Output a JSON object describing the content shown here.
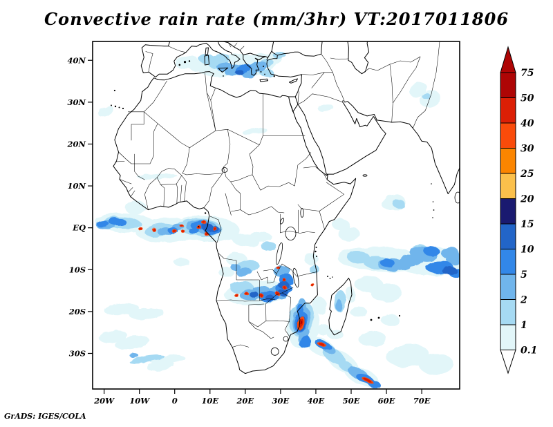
{
  "title": "Convective rain rate (mm/3hr) VT:2017011806",
  "attribution": "GrADS: IGES/COLA",
  "axes": {
    "lon_min": -23.25,
    "lon_max": 80.75,
    "lat_min": -38.5,
    "lat_max": 44.5,
    "lon_ticks": [
      {
        "value": -20,
        "label": "20W"
      },
      {
        "value": -10,
        "label": "10W"
      },
      {
        "value": 0,
        "label": "0"
      },
      {
        "value": 10,
        "label": "10E"
      },
      {
        "value": 20,
        "label": "20E"
      },
      {
        "value": 30,
        "label": "30E"
      },
      {
        "value": 40,
        "label": "40E"
      },
      {
        "value": 50,
        "label": "50E"
      },
      {
        "value": 60,
        "label": "60E"
      },
      {
        "value": 70,
        "label": "70E"
      }
    ],
    "lat_ticks": [
      {
        "value": 40,
        "label": "40N"
      },
      {
        "value": 30,
        "label": "30N"
      },
      {
        "value": 20,
        "label": "20N"
      },
      {
        "value": 10,
        "label": "10N"
      },
      {
        "value": 0,
        "label": "EQ"
      },
      {
        "value": -10,
        "label": "10S"
      },
      {
        "value": -20,
        "label": "20S"
      },
      {
        "value": -30,
        "label": "30S"
      }
    ]
  },
  "colorbar": {
    "labels": [
      "75",
      "50",
      "40",
      "30",
      "25",
      "20",
      "15",
      "10",
      "5",
      "2",
      "1",
      "0.1"
    ],
    "segment_colors": [
      "#AE0505",
      "#DC1F05",
      "#FA4B0A",
      "#FB8500",
      "#FBC04B",
      "#1A1A70",
      "#2265C8",
      "#3287E8",
      "#70B5EC",
      "#A6DAF3",
      "#E2F6F9"
    ],
    "over_arrow_color": "#AE0505",
    "under_arrow_color": "#FFFFFF"
  },
  "chart_data": {
    "type": "filled-contour-map",
    "title": "Convective rain rate (mm/3hr) VT:2017011806",
    "variable": "Convective rain rate",
    "units": "mm/3hr",
    "valid_time": "2017011806",
    "region": {
      "lon_min": -23.25,
      "lon_max": 80.75,
      "lat_min": -38.5,
      "lat_max": 44.5
    },
    "levels": [
      0.1,
      1,
      2,
      5,
      10,
      15,
      20,
      25,
      30,
      40,
      50,
      75
    ],
    "palette": {
      "0.1": "#E2F6F9",
      "1": "#A6DAF3",
      "2": "#70B5EC",
      "5": "#3287E8",
      "10": "#2265C8",
      "15": "#1A1A70",
      "O": "#FA4B0A",
      "R": "#DC1F05",
      "DR": "#AE0505"
    },
    "feature_format": [
      "lon",
      "lat",
      "rx_deg",
      "ry_deg",
      "rotation_deg",
      "level"
    ],
    "features": [
      [
        3.5,
        39.5,
        3.3,
        1.5,
        -10,
        "0.1"
      ],
      [
        7,
        38.6,
        3,
        1.3,
        0,
        "0.1"
      ],
      [
        15,
        38.8,
        8.5,
        2.6,
        -8,
        "0.1"
      ],
      [
        23,
        38.8,
        6,
        2.6,
        -12,
        "0.1"
      ],
      [
        27.8,
        40.3,
        3,
        1.4,
        -15,
        "0.1"
      ],
      [
        -19.5,
        27.8,
        2.4,
        1.1,
        -20,
        "0.1"
      ],
      [
        22.6,
        23.1,
        3.5,
        0.8,
        -8,
        "0.1"
      ],
      [
        -5,
        12.3,
        5.5,
        0.7,
        -4,
        "0.1"
      ],
      [
        42.8,
        28.6,
        2.2,
        0.8,
        -10,
        "0.1"
      ],
      [
        69,
        33,
        2.6,
        1.6,
        -30,
        "0.1"
      ],
      [
        72.3,
        30.8,
        3,
        2,
        -20,
        "0.1"
      ],
      [
        -14,
        1.2,
        8.5,
        2.3,
        3,
        "0.1"
      ],
      [
        -2,
        -0.6,
        9,
        2.9,
        -4,
        "0.1"
      ],
      [
        9,
        -0.2,
        9.5,
        3.1,
        4,
        "0.1"
      ],
      [
        -11,
        4.8,
        3,
        1.7,
        0,
        "0.1"
      ],
      [
        2,
        -8.2,
        2.2,
        1,
        0,
        "0.1"
      ],
      [
        20,
        -3,
        4,
        1.5,
        10,
        "0.1"
      ],
      [
        24.5,
        -2.2,
        3,
        1.2,
        0,
        "0.1"
      ],
      [
        17.5,
        -7.5,
        3,
        1.6,
        0,
        "0.1"
      ],
      [
        14.5,
        -10.5,
        2.2,
        1.2,
        0,
        "0.1"
      ],
      [
        23,
        -15.5,
        9,
        3,
        -4,
        "0.1"
      ],
      [
        36.5,
        -23.5,
        4.5,
        5.5,
        10,
        "0.1"
      ],
      [
        41.5,
        -28.5,
        4.5,
        2,
        25,
        "0.1"
      ],
      [
        47.5,
        -32,
        5,
        2.2,
        33,
        "0.1"
      ],
      [
        53,
        -35.5,
        5,
        2,
        22,
        "0.1"
      ],
      [
        38.6,
        -7.4,
        2,
        1.4,
        0,
        "0.1"
      ],
      [
        49.8,
        -15.8,
        1.4,
        1.8,
        0,
        "0.1"
      ],
      [
        45.5,
        -25.5,
        2.2,
        1.2,
        0,
        "0.1"
      ],
      [
        42.5,
        -24.5,
        2,
        1.3,
        0,
        "0.1"
      ],
      [
        41,
        -18.5,
        2,
        2,
        0,
        "0.1"
      ],
      [
        59,
        -7.6,
        13,
        2.9,
        3,
        "0.1"
      ],
      [
        73,
        -8,
        9.5,
        3.4,
        -3,
        "0.1"
      ],
      [
        62,
        6,
        3.4,
        1.9,
        -10,
        "0.1"
      ],
      [
        49.5,
        -1.5,
        3,
        1.8,
        0,
        "0.1"
      ],
      [
        47,
        0.8,
        2.4,
        1.4,
        0,
        "0.1"
      ],
      [
        55,
        -13.5,
        4,
        1.9,
        0,
        "0.1"
      ],
      [
        60,
        -15.5,
        4.5,
        2.2,
        0,
        "0.1"
      ],
      [
        56,
        -26.5,
        4,
        1.9,
        0,
        "0.1"
      ],
      [
        52,
        -20,
        2.4,
        1.2,
        0,
        "0.1"
      ],
      [
        66,
        -30.5,
        6,
        2.8,
        -5,
        "0.1"
      ],
      [
        74,
        -32.5,
        5,
        2.5,
        0,
        "0.1"
      ],
      [
        61,
        -22,
        2.6,
        1.3,
        0,
        "0.1"
      ],
      [
        -15,
        -19.5,
        5,
        1.4,
        -5,
        "0.1"
      ],
      [
        -8,
        -20.5,
        5,
        1.3,
        -5,
        "0.1"
      ],
      [
        -17.5,
        -26,
        4,
        1.5,
        -8,
        "0.1"
      ],
      [
        -12,
        -27.5,
        5,
        1.4,
        -8,
        "0.1"
      ],
      [
        -4,
        -33,
        4,
        1,
        -8,
        "0.1"
      ],
      [
        -2,
        -31.5,
        5,
        1,
        -6,
        "0.1"
      ],
      [
        9.2,
        40.3,
        2.3,
        1.1,
        0,
        "1"
      ],
      [
        12.5,
        39.9,
        3.2,
        1.6,
        -20,
        "1"
      ],
      [
        25.6,
        39.3,
        2.4,
        1.1,
        -10,
        "1"
      ],
      [
        26.2,
        36.9,
        2,
        0.9,
        0,
        "1"
      ],
      [
        29.6,
        41.3,
        1.8,
        0.9,
        0,
        "1"
      ],
      [
        71.2,
        31.5,
        1.2,
        0.8,
        0,
        "1"
      ],
      [
        -15,
        1.2,
        5.5,
        1.4,
        3,
        "1"
      ],
      [
        -4,
        -0.6,
        4.5,
        1.5,
        -8,
        "1"
      ],
      [
        7,
        0.1,
        6.5,
        2.1,
        5,
        "1"
      ],
      [
        20.5,
        -9.2,
        3.4,
        1.5,
        -8,
        "1"
      ],
      [
        19,
        -14.3,
        3.4,
        1.5,
        0,
        "1"
      ],
      [
        36,
        -21.8,
        3.4,
        4.2,
        12,
        "1"
      ],
      [
        45,
        -30.5,
        3.4,
        1.6,
        32,
        "1"
      ],
      [
        48.5,
        -33,
        2.6,
        1.2,
        35,
        "1"
      ],
      [
        39.4,
        -9.8,
        1.5,
        1,
        0,
        "1"
      ],
      [
        46.8,
        -17.5,
        1.6,
        2.6,
        5,
        "1"
      ],
      [
        52,
        -7,
        3.4,
        1.4,
        5,
        "1"
      ],
      [
        57.5,
        -8.4,
        4,
        1.5,
        3,
        "1"
      ],
      [
        69.5,
        -5,
        2,
        1,
        0,
        "1"
      ],
      [
        63.4,
        5.8,
        1.7,
        1,
        0,
        "1"
      ],
      [
        -8,
        -31.3,
        5,
        0.8,
        -10,
        "1"
      ],
      [
        26.6,
        -4.4,
        2.2,
        1.1,
        0,
        "1"
      ],
      [
        14.2,
        38.4,
        2.4,
        1.1,
        0,
        "2"
      ],
      [
        17.2,
        37.6,
        3,
        1.4,
        -15,
        "2"
      ],
      [
        21.2,
        36.6,
        2.1,
        1,
        0,
        "2"
      ],
      [
        23.6,
        38.4,
        2.6,
        1.4,
        -20,
        "2"
      ],
      [
        -19.5,
        0.8,
        3,
        1.1,
        0,
        "2"
      ],
      [
        -2.6,
        -0.9,
        2.2,
        0.9,
        -10,
        "2"
      ],
      [
        0.8,
        0.3,
        1.6,
        0.8,
        0,
        "2"
      ],
      [
        7.5,
        0.3,
        4.6,
        1.6,
        5,
        "2"
      ],
      [
        19.6,
        -10.6,
        2.4,
        1,
        0,
        "2"
      ],
      [
        17.2,
        -9.4,
        1.4,
        0.8,
        0,
        "2"
      ],
      [
        21.5,
        -16,
        3,
        1.3,
        -8,
        "2"
      ],
      [
        24.5,
        -15,
        2.6,
        1.2,
        0,
        "2"
      ],
      [
        29.4,
        -15.4,
        3,
        1.5,
        0,
        "2"
      ],
      [
        30.4,
        -10.4,
        2.4,
        1.4,
        0,
        "2"
      ],
      [
        36,
        -22.2,
        2.5,
        3.4,
        12,
        "2"
      ],
      [
        35.8,
        -19,
        1.4,
        2.2,
        8,
        "2"
      ],
      [
        36.6,
        -25.8,
        1.5,
        2,
        20,
        "2"
      ],
      [
        43.5,
        -28.8,
        2.2,
        1,
        30,
        "2"
      ],
      [
        52,
        -34.8,
        3,
        1.3,
        25,
        "2"
      ],
      [
        46.5,
        -18.5,
        0.9,
        1.4,
        0,
        "2"
      ],
      [
        61.5,
        -8.8,
        4,
        1.5,
        0,
        "2"
      ],
      [
        64.5,
        -9,
        2.6,
        1.2,
        0,
        "2"
      ],
      [
        67,
        -7.8,
        3.4,
        1.5,
        -5,
        "2"
      ],
      [
        70.5,
        -6.2,
        4,
        1.7,
        8,
        "2"
      ],
      [
        78,
        -6,
        2.5,
        1.5,
        0,
        "2"
      ],
      [
        79.5,
        -7.5,
        2.5,
        1.5,
        0,
        "2"
      ],
      [
        -11.5,
        -30.5,
        1.3,
        0.5,
        0,
        "2"
      ],
      [
        19.6,
        37.9,
        2.3,
        1.2,
        -10,
        "5"
      ],
      [
        -16.2,
        1.4,
        2.6,
        0.9,
        5,
        "5"
      ],
      [
        -20.5,
        1,
        1.8,
        0.8,
        0,
        "5"
      ],
      [
        -0.6,
        -0.6,
        1.4,
        0.8,
        0,
        "5"
      ],
      [
        7,
        0.6,
        2.6,
        1.1,
        0,
        "5"
      ],
      [
        10.6,
        -0.6,
        2.4,
        1,
        0,
        "5"
      ],
      [
        5.6,
        -0.8,
        1.5,
        0.8,
        0,
        "5"
      ],
      [
        26.6,
        -16.4,
        2.8,
        1.3,
        0,
        "5"
      ],
      [
        31,
        -14.6,
        2.3,
        1.3,
        0,
        "5"
      ],
      [
        31.6,
        -12.4,
        2,
        1.4,
        0,
        "5"
      ],
      [
        35.8,
        -22.5,
        1.8,
        2.5,
        15,
        "5"
      ],
      [
        35.6,
        -19.5,
        0.9,
        1.4,
        0,
        "5"
      ],
      [
        37,
        -27.3,
        1.3,
        1.6,
        30,
        "5"
      ],
      [
        42,
        -27.9,
        2.4,
        0.9,
        20,
        "5"
      ],
      [
        53.8,
        -36,
        2.6,
        1,
        20,
        "5"
      ],
      [
        56.5,
        -37.3,
        2,
        0.9,
        20,
        "5"
      ],
      [
        60.3,
        -8.4,
        2,
        1,
        0,
        "5"
      ],
      [
        72.8,
        -5.6,
        2.4,
        1.2,
        8,
        "5"
      ],
      [
        75,
        -9.4,
        4,
        1.5,
        0,
        "5"
      ],
      [
        79.8,
        -10.8,
        2.2,
        1,
        0,
        "5"
      ],
      [
        18.5,
        37,
        1.2,
        0.6,
        0,
        "10"
      ],
      [
        9.3,
        0.1,
        1.6,
        0.9,
        0,
        "10"
      ],
      [
        11.3,
        -0.3,
        1.2,
        0.7,
        0,
        "10"
      ],
      [
        22.4,
        -15.9,
        1.3,
        0.7,
        0,
        "10"
      ],
      [
        27,
        -16.8,
        1.3,
        0.7,
        0,
        "10"
      ],
      [
        30.8,
        -15.5,
        1.4,
        0.8,
        0,
        "10"
      ],
      [
        30.9,
        -13.7,
        1.5,
        0.9,
        0,
        "10"
      ],
      [
        35.8,
        -22.8,
        1.3,
        1.8,
        15,
        "10"
      ],
      [
        77.8,
        -10.2,
        2.2,
        0.9,
        0,
        "10"
      ],
      [
        35.75,
        -22.6,
        0.9,
        1.3,
        15,
        "15"
      ],
      [
        35.7,
        -22.7,
        0.95,
        1.45,
        18,
        "O"
      ],
      [
        -9.7,
        -0.2,
        0.4,
        0.28,
        0,
        "R"
      ],
      [
        -5.8,
        -0.5,
        0.4,
        0.28,
        0,
        "R"
      ],
      [
        -0.2,
        -0.7,
        0.45,
        0.3,
        0,
        "R"
      ],
      [
        1.8,
        0.6,
        0.35,
        0.25,
        0,
        "R"
      ],
      [
        2.4,
        -0.9,
        0.35,
        0.25,
        0,
        "R"
      ],
      [
        6.9,
        0.1,
        0.45,
        0.3,
        0,
        "R"
      ],
      [
        8.4,
        1.2,
        0.45,
        0.3,
        0,
        "R"
      ],
      [
        8.8,
        -1.3,
        0.4,
        0.28,
        0,
        "R"
      ],
      [
        11.2,
        -0.1,
        0.4,
        0.28,
        0,
        "R"
      ],
      [
        17.5,
        -16.1,
        0.4,
        0.28,
        0,
        "R"
      ],
      [
        20.4,
        -15.8,
        0.4,
        0.28,
        0,
        "R"
      ],
      [
        24.5,
        -16.1,
        0.4,
        0.28,
        0,
        "R"
      ],
      [
        29.2,
        -15.8,
        0.4,
        0.28,
        0,
        "R"
      ],
      [
        31.2,
        -14.3,
        0.4,
        0.28,
        0,
        "R"
      ],
      [
        29.4,
        -9.6,
        0.35,
        0.25,
        0,
        "R"
      ],
      [
        31.2,
        -12.6,
        0.35,
        0.25,
        0,
        "R"
      ],
      [
        39,
        -13.6,
        0.35,
        0.25,
        0,
        "R"
      ],
      [
        35.7,
        -22.7,
        0.6,
        1.05,
        18,
        "R"
      ],
      [
        41.6,
        -27.8,
        0.85,
        0.26,
        15,
        "R"
      ],
      [
        54.6,
        -36.4,
        0.95,
        0.3,
        18,
        "R"
      ],
      [
        35.75,
        -22.55,
        0.3,
        0.45,
        15,
        "DR"
      ]
    ]
  }
}
